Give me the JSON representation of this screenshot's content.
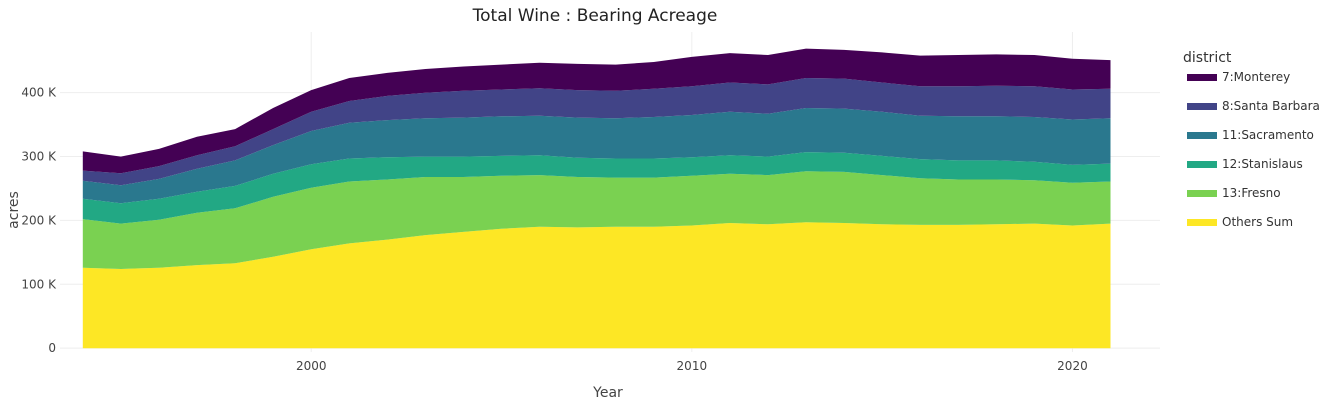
{
  "chart_data": {
    "type": "area",
    "stacked": true,
    "title": "Total Wine : Bearing Acreage",
    "xlabel": "Year",
    "ylabel": "acres",
    "xlim": [
      1993.4,
      2022.3
    ],
    "ylim": [
      -6000,
      495000
    ],
    "x_ticks": [
      2000,
      2010,
      2020
    ],
    "y_ticks": [
      0,
      100000,
      200000,
      300000,
      400000
    ],
    "y_tick_labels": [
      "0",
      "100 K",
      "200 K",
      "300 K",
      "400 K"
    ],
    "grid": true,
    "legend_title": "district",
    "legend_position": "right",
    "x": [
      1994,
      1995,
      1996,
      1997,
      1998,
      1999,
      2000,
      2001,
      2002,
      2003,
      2004,
      2005,
      2006,
      2007,
      2008,
      2009,
      2010,
      2011,
      2012,
      2013,
      2014,
      2015,
      2016,
      2017,
      2018,
      2019,
      2020,
      2021
    ],
    "series": [
      {
        "name": "Others Sum",
        "color": "#fde725",
        "values": [
          126000,
          124000,
          126000,
          130000,
          133000,
          143000,
          155000,
          164000,
          170000,
          177000,
          182000,
          187000,
          190000,
          189000,
          190000,
          190000,
          192000,
          196000,
          194000,
          197000,
          196000,
          194000,
          193000,
          193000,
          194000,
          195000,
          192000,
          195000
        ]
      },
      {
        "name": "13:Fresno",
        "color": "#7ad151",
        "values": [
          76000,
          71000,
          75000,
          82000,
          86000,
          94000,
          96000,
          97000,
          94000,
          91000,
          86000,
          83000,
          81000,
          79000,
          77000,
          77000,
          78000,
          77000,
          77000,
          80000,
          80000,
          77000,
          73000,
          71000,
          70000,
          68000,
          67000,
          66000
        ]
      },
      {
        "name": "12:Stanislaus",
        "color": "#22a884",
        "values": [
          32000,
          32000,
          33000,
          33000,
          35000,
          36000,
          37000,
          36000,
          35000,
          32000,
          32000,
          31000,
          31000,
          30000,
          30000,
          30000,
          29000,
          29000,
          29000,
          30000,
          30000,
          30000,
          30000,
          30000,
          30000,
          29000,
          28000,
          28000
        ]
      },
      {
        "name": "11:Sacramento",
        "color": "#2a788e",
        "values": [
          28000,
          28000,
          31000,
          36000,
          40000,
          45000,
          52000,
          56000,
          58000,
          60000,
          61000,
          62000,
          62000,
          63000,
          63000,
          65000,
          66000,
          68000,
          67000,
          69000,
          69000,
          69000,
          68000,
          69000,
          69000,
          70000,
          71000,
          71000
        ]
      },
      {
        "name": "8:Santa Barbara",
        "color": "#414487",
        "values": [
          16000,
          19000,
          20000,
          21000,
          22000,
          25000,
          30000,
          34000,
          38000,
          40000,
          42000,
          42000,
          43000,
          43000,
          43000,
          44000,
          45000,
          46000,
          46000,
          47000,
          47000,
          46000,
          46000,
          47000,
          48000,
          48000,
          47000,
          46000
        ]
      },
      {
        "name": "7:Monterey",
        "color": "#440154",
        "values": [
          30000,
          26000,
          27000,
          29000,
          27000,
          33000,
          34000,
          36000,
          36000,
          37000,
          38000,
          39000,
          40000,
          41000,
          41000,
          42000,
          46000,
          46000,
          46000,
          46000,
          45000,
          47000,
          48000,
          49000,
          49000,
          49000,
          48000,
          45000
        ]
      }
    ],
    "legend_order": [
      "7:Monterey",
      "8:Santa Barbara",
      "11:Sacramento",
      "12:Stanislaus",
      "13:Fresno",
      "Others Sum"
    ]
  }
}
